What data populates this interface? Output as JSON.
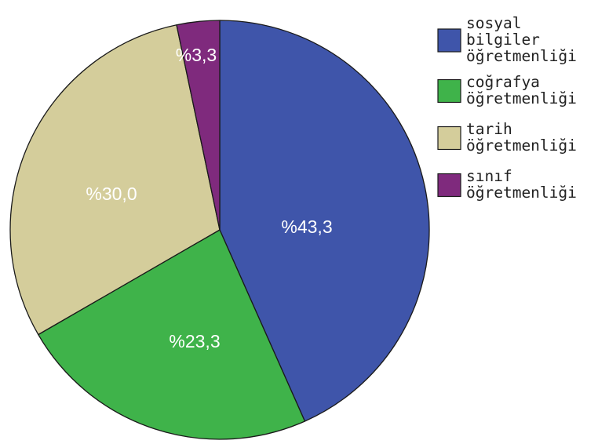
{
  "chart_data": {
    "type": "pie",
    "title": "",
    "slices": [
      {
        "label": [
          "sosyal",
          "bilgiler",
          "öğretmenliği"
        ],
        "value": 43.3,
        "display": "%43,3",
        "color": "#3f55aa"
      },
      {
        "label": [
          "coğrafya",
          "öğretmenliği"
        ],
        "value": 23.3,
        "display": "%23,3",
        "color": "#3fb34a"
      },
      {
        "label": [
          "tarih",
          "öğretmenliği"
        ],
        "value": 30.0,
        "display": "%30,0",
        "color": "#d4cd9b"
      },
      {
        "label": [
          "sınıf",
          "öğretmenliği"
        ],
        "value": 3.3,
        "display": "%3,3",
        "color": "#7f2a7d"
      }
    ],
    "start_angle_deg": 0,
    "direction": "clockwise",
    "legend_position": "right"
  }
}
